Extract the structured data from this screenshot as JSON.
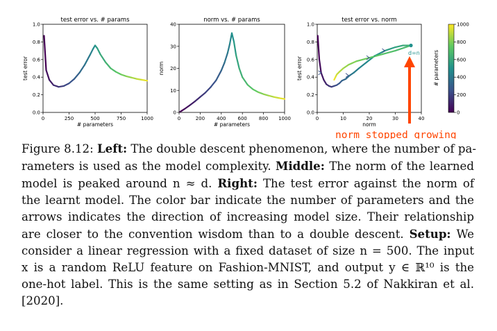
{
  "colors": {
    "colormap": [
      "#440154",
      "#3b528b",
      "#21918c",
      "#5ec962",
      "#fde725"
    ],
    "arrow": "#ff4500",
    "axis": "#000000"
  },
  "annotation": {
    "text": "norm stopped growing",
    "dn_label": "d=n"
  },
  "colorbar": {
    "label": "# parameters",
    "ticks": [
      "0",
      "200",
      "400",
      "600",
      "800",
      "1000"
    ],
    "range": [
      0,
      1000
    ]
  },
  "chart_data": [
    {
      "type": "line",
      "title": "test error vs. # params",
      "xlabel": "# parameters",
      "ylabel": "test error",
      "xlim": [
        0,
        1000
      ],
      "ylim": [
        0,
        1.0
      ],
      "xticks": [
        "0",
        "250",
        "500",
        "750",
        "1000"
      ],
      "yticks": [
        "0.0",
        "0.2",
        "0.4",
        "0.6",
        "0.8",
        "1.0"
      ],
      "x": [
        10,
        30,
        60,
        100,
        150,
        200,
        250,
        300,
        350,
        400,
        450,
        480,
        500,
        520,
        550,
        600,
        650,
        700,
        750,
        800,
        850,
        900,
        950,
        1000
      ],
      "y": [
        0.87,
        0.48,
        0.37,
        0.31,
        0.29,
        0.3,
        0.33,
        0.38,
        0.45,
        0.54,
        0.65,
        0.72,
        0.76,
        0.73,
        0.66,
        0.57,
        0.5,
        0.46,
        0.43,
        0.41,
        0.395,
        0.38,
        0.37,
        0.36
      ]
    },
    {
      "type": "line",
      "title": "norm vs. # params",
      "xlabel": "# parameters",
      "ylabel": "norm",
      "xlim": [
        0,
        1000
      ],
      "ylim": [
        0,
        40
      ],
      "xticks": [
        "0",
        "200",
        "400",
        "600",
        "800",
        "1000"
      ],
      "yticks": [
        "0",
        "10",
        "20",
        "30",
        "40"
      ],
      "x": [
        10,
        50,
        100,
        150,
        200,
        250,
        300,
        350,
        400,
        430,
        460,
        480,
        500,
        520,
        540,
        570,
        600,
        650,
        700,
        750,
        800,
        850,
        900,
        950,
        1000
      ],
      "y": [
        0.3,
        1.5,
        3.2,
        5,
        7,
        9,
        11.5,
        14.5,
        19,
        22.5,
        27,
        31,
        36,
        32,
        26,
        20,
        16,
        12.5,
        10.5,
        9.2,
        8.3,
        7.6,
        7.0,
        6.5,
        6.1
      ]
    },
    {
      "type": "line",
      "title": "test error vs. norm",
      "xlabel": "norm",
      "ylabel": "test error",
      "xlim": [
        0,
        40
      ],
      "ylim": [
        0,
        1.0
      ],
      "xticks": [
        "0",
        "10",
        "20",
        "30",
        "40"
      ],
      "yticks": [
        "0.0",
        "0.2",
        "0.4",
        "0.6",
        "0.8",
        "1.0"
      ],
      "x": [
        0.2,
        0.8,
        1.5,
        2.5,
        3.5,
        4.5,
        5.5,
        6.5,
        7.5,
        8.5,
        9.5,
        11,
        12.5,
        14,
        16,
        19,
        22,
        26,
        30,
        33,
        35,
        36,
        30,
        25,
        20,
        15,
        12,
        10,
        8.5,
        7.5,
        7,
        6.5
      ],
      "y": [
        0.87,
        0.6,
        0.45,
        0.37,
        0.32,
        0.3,
        0.29,
        0.3,
        0.31,
        0.33,
        0.36,
        0.38,
        0.42,
        0.45,
        0.5,
        0.57,
        0.64,
        0.7,
        0.74,
        0.76,
        0.76,
        0.76,
        0.7,
        0.66,
        0.62,
        0.58,
        0.54,
        0.5,
        0.46,
        0.43,
        0.4,
        0.37
      ]
    }
  ],
  "caption": {
    "lines": [
      [
        {
          "t": "Figure 8.12: "
        },
        {
          "t": "Left:",
          "b": true
        },
        {
          "t": " The double descent phenomenon, where the number of pa-"
        }
      ],
      [
        {
          "t": "rameters is used as the model complexity. "
        },
        {
          "t": "Middle:",
          "b": true
        },
        {
          "t": " The norm of the learned"
        }
      ],
      [
        {
          "t": "model is peaked around n ≈ d. "
        },
        {
          "t": "Right:",
          "b": true
        },
        {
          "t": " The test error against the norm of"
        }
      ],
      [
        {
          "t": "the learnt model. The color bar indicate the number of parameters and the"
        }
      ],
      [
        {
          "t": "arrows indicates the direction of increasing model size. Their relationship"
        }
      ],
      [
        {
          "t": "are closer to the convention wisdom than to a double descent. "
        },
        {
          "t": "Setup:",
          "b": true
        },
        {
          "t": " We"
        }
      ],
      [
        {
          "t": "consider a linear regression with a fixed dataset of size n = 500. The input"
        }
      ],
      [
        {
          "t": "x is a random ReLU feature on Fashion-MNIST, and output y ∈ ℝ¹⁰ is the"
        }
      ],
      [
        {
          "t": "one-hot label. This is the same setting as in Section 5.2 of Nakkiran et al."
        }
      ],
      [
        {
          "t": "[2020]."
        }
      ]
    ]
  }
}
